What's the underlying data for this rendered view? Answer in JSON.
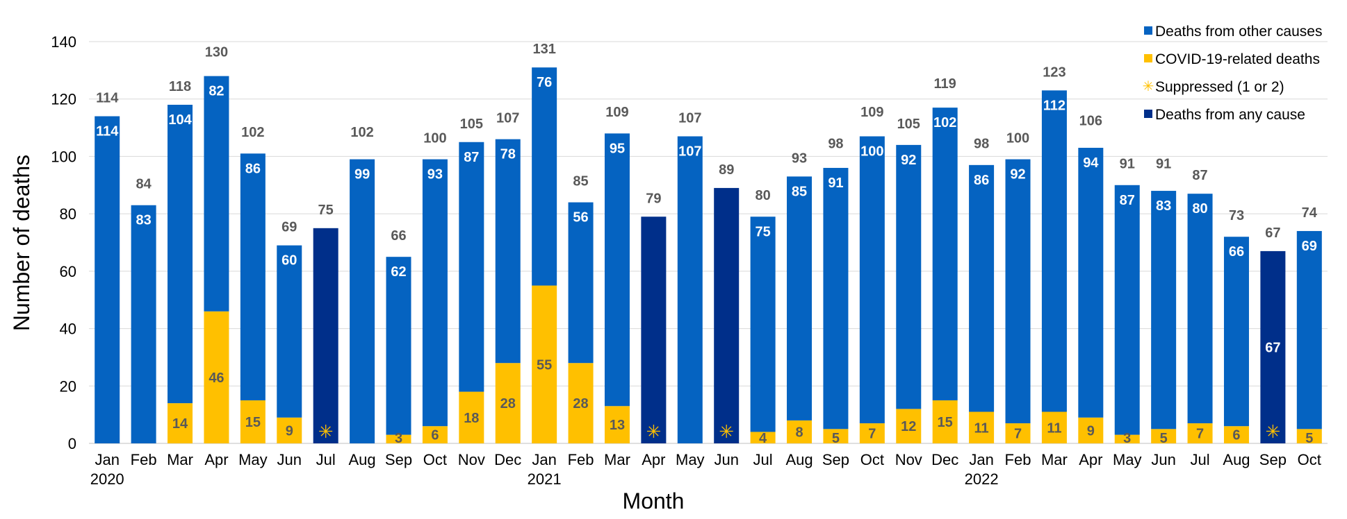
{
  "chart_data": {
    "type": "bar",
    "stacked": true,
    "title": "",
    "xlabel": "Month",
    "ylabel": "Number of deaths",
    "ylim": [
      0,
      140
    ],
    "yticks": [
      0,
      20,
      40,
      60,
      80,
      100,
      120,
      140
    ],
    "grid": "horizontal",
    "legend_position": "top-right",
    "colors": {
      "other": "#0563C1",
      "covid": "#FFC000",
      "any": "#002F8A",
      "suppressed": "#FFC000",
      "total_label": "#595959",
      "gridline": "#D9D9D9"
    },
    "legend": [
      {
        "key": "other",
        "label": "Deaths from other causes",
        "marker": "square"
      },
      {
        "key": "covid",
        "label": "COVID-19-related deaths",
        "marker": "square"
      },
      {
        "key": "suppressed",
        "label": "Suppressed (1 or 2)",
        "marker": "asterisk"
      },
      {
        "key": "any",
        "label": "Deaths from any cause",
        "marker": "square"
      }
    ],
    "suppressed_symbol": "✳",
    "months": [
      {
        "month": "Jan",
        "year": "2020",
        "total": 114,
        "covid": 0,
        "other": 114,
        "type": "stacked",
        "covid_label": null,
        "other_label": "114"
      },
      {
        "month": "Feb",
        "year": "",
        "total": 84,
        "covid": 0,
        "other": 83,
        "type": "stacked",
        "covid_label": null,
        "other_label": "83"
      },
      {
        "month": "Mar",
        "year": "",
        "total": 118,
        "covid": 14,
        "other": 104,
        "type": "stacked",
        "covid_label": "14",
        "other_label": "104"
      },
      {
        "month": "Apr",
        "year": "",
        "total": 130,
        "covid": 46,
        "other": 82,
        "type": "stacked",
        "covid_label": "46",
        "other_label": "82"
      },
      {
        "month": "May",
        "year": "",
        "total": 102,
        "covid": 15,
        "other": 86,
        "type": "stacked",
        "covid_label": "15",
        "other_label": "86"
      },
      {
        "month": "Jun",
        "year": "",
        "total": 69,
        "covid": 9,
        "other": 60,
        "type": "stacked",
        "covid_label": "9",
        "other_label": "60"
      },
      {
        "month": "Jul",
        "year": "",
        "total": 75,
        "covid": 0,
        "other": 0,
        "type": "any",
        "covid_label": null,
        "other_label": null
      },
      {
        "month": "Aug",
        "year": "",
        "total": 102,
        "covid": 0,
        "other": 99,
        "type": "stacked",
        "covid_label": null,
        "other_label": "99"
      },
      {
        "month": "Sep",
        "year": "",
        "total": 66,
        "covid": 3,
        "other": 62,
        "type": "stacked",
        "covid_label": "3",
        "other_label": "62"
      },
      {
        "month": "Oct",
        "year": "",
        "total": 100,
        "covid": 6,
        "other": 93,
        "type": "stacked",
        "covid_label": "6",
        "other_label": "93"
      },
      {
        "month": "Nov",
        "year": "",
        "total": 105,
        "covid": 18,
        "other": 87,
        "type": "stacked",
        "covid_label": "18",
        "other_label": "87"
      },
      {
        "month": "Dec",
        "year": "",
        "total": 107,
        "covid": 28,
        "other": 78,
        "type": "stacked",
        "covid_label": "28",
        "other_label": "78"
      },
      {
        "month": "Jan",
        "year": "2021",
        "total": 131,
        "covid": 55,
        "other": 76,
        "type": "stacked",
        "covid_label": "55",
        "other_label": "76"
      },
      {
        "month": "Feb",
        "year": "",
        "total": 85,
        "covid": 28,
        "other": 56,
        "type": "stacked",
        "covid_label": "28",
        "other_label": "56"
      },
      {
        "month": "Mar",
        "year": "",
        "total": 109,
        "covid": 13,
        "other": 95,
        "type": "stacked",
        "covid_label": "13",
        "other_label": "95"
      },
      {
        "month": "Apr",
        "year": "",
        "total": 79,
        "covid": 0,
        "other": 0,
        "type": "any",
        "covid_label": null,
        "other_label": null
      },
      {
        "month": "May",
        "year": "",
        "total": 107,
        "covid": 0,
        "other": 107,
        "type": "stacked",
        "covid_label": null,
        "other_label": "107"
      },
      {
        "month": "Jun",
        "year": "",
        "total": 89,
        "covid": 0,
        "other": 0,
        "type": "any",
        "covid_label": null,
        "other_label": null
      },
      {
        "month": "Jul",
        "year": "",
        "total": 80,
        "covid": 4,
        "other": 75,
        "type": "stacked",
        "covid_label": "4",
        "other_label": "75"
      },
      {
        "month": "Aug",
        "year": "",
        "total": 93,
        "covid": 8,
        "other": 85,
        "type": "stacked",
        "covid_label": "8",
        "other_label": "85"
      },
      {
        "month": "Sep",
        "year": "",
        "total": 98,
        "covid": 5,
        "other": 91,
        "type": "stacked",
        "covid_label": "5",
        "other_label": "91"
      },
      {
        "month": "Oct",
        "year": "",
        "total": 109,
        "covid": 7,
        "other": 100,
        "type": "stacked",
        "covid_label": "7",
        "other_label": "100"
      },
      {
        "month": "Nov",
        "year": "",
        "total": 105,
        "covid": 12,
        "other": 92,
        "type": "stacked",
        "covid_label": "12",
        "other_label": "92"
      },
      {
        "month": "Dec",
        "year": "",
        "total": 119,
        "covid": 15,
        "other": 102,
        "type": "stacked",
        "covid_label": "15",
        "other_label": "102"
      },
      {
        "month": "Jan",
        "year": "2022",
        "total": 98,
        "covid": 11,
        "other": 86,
        "type": "stacked",
        "covid_label": "11",
        "other_label": "86"
      },
      {
        "month": "Feb",
        "year": "",
        "total": 100,
        "covid": 7,
        "other": 92,
        "type": "stacked",
        "covid_label": "7",
        "other_label": "92"
      },
      {
        "month": "Mar",
        "year": "",
        "total": 123,
        "covid": 11,
        "other": 112,
        "type": "stacked",
        "covid_label": "11",
        "other_label": "112"
      },
      {
        "month": "Apr",
        "year": "",
        "total": 106,
        "covid": 9,
        "other": 94,
        "type": "stacked",
        "covid_label": "9",
        "other_label": "94"
      },
      {
        "month": "May",
        "year": "",
        "total": 91,
        "covid": 3,
        "other": 87,
        "type": "stacked",
        "covid_label": "3",
        "other_label": "87"
      },
      {
        "month": "Jun",
        "year": "",
        "total": 91,
        "covid": 5,
        "other": 83,
        "type": "stacked",
        "covid_label": "5",
        "other_label": "83"
      },
      {
        "month": "Jul",
        "year": "",
        "total": 87,
        "covid": 7,
        "other": 80,
        "type": "stacked",
        "covid_label": "7",
        "other_label": "80"
      },
      {
        "month": "Aug",
        "year": "",
        "total": 73,
        "covid": 6,
        "other": 66,
        "type": "stacked",
        "covid_label": "6",
        "other_label": "66"
      },
      {
        "month": "Sep",
        "year": "",
        "total": 67,
        "covid": 0,
        "other": 0,
        "type": "any",
        "covid_label": null,
        "other_label": "67"
      },
      {
        "month": "Oct",
        "year": "",
        "total": 74,
        "covid": 5,
        "other": 69,
        "type": "stacked",
        "covid_label": "5",
        "other_label": "69"
      }
    ]
  }
}
